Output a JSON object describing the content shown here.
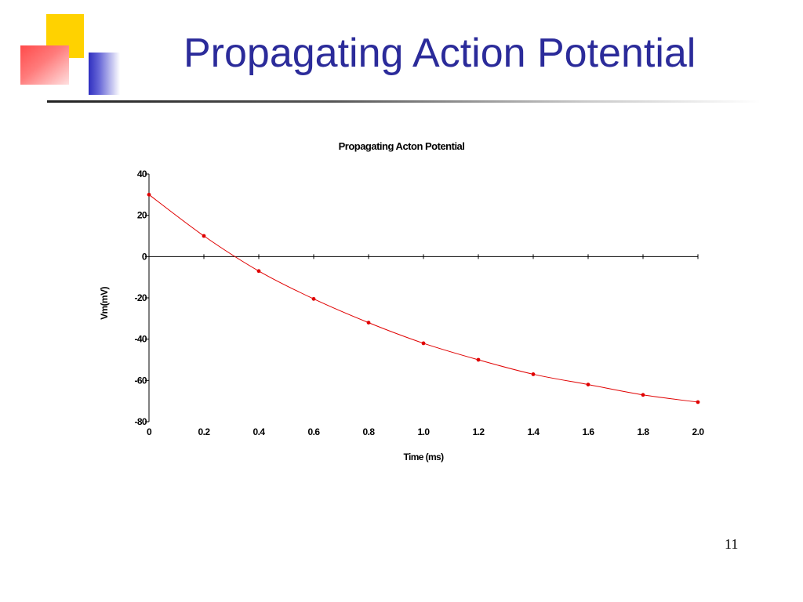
{
  "slide": {
    "title": "Propagating Action Potential",
    "page_number": "11",
    "colors": {
      "title": "#2b2b9a",
      "deco_yellow": "#ffd200",
      "deco_red": "#ff4a4a",
      "deco_blue": "#2f2fc0"
    }
  },
  "chart_data": {
    "type": "line",
    "title": "Propagating Acton Potential",
    "xlabel": "Time (ms)",
    "ylabel": "Vm(mV)",
    "xlim": [
      0,
      2.0
    ],
    "ylim": [
      -80,
      40
    ],
    "x_ticks": [
      0,
      0.2,
      0.4,
      0.6,
      0.8,
      1.0,
      1.2,
      1.4,
      1.6,
      1.8,
      2.0
    ],
    "x_tick_labels": [
      "0",
      "0.2",
      "0.4",
      "0.6",
      "0.8",
      "1.0",
      "1.2",
      "1.4",
      "1.6",
      "1.8",
      "2.0"
    ],
    "y_ticks": [
      40,
      20,
      0,
      -20,
      -40,
      -60,
      -80
    ],
    "y_tick_labels": [
      "40",
      "20",
      "0",
      "-20",
      "-40",
      "-60",
      "-80"
    ],
    "grid": false,
    "legend": "none",
    "series": [
      {
        "color": "#e00000",
        "x": [
          0,
          0.2,
          0.4,
          0.6,
          0.8,
          1.0,
          1.2,
          1.4,
          1.6,
          1.8,
          2.0
        ],
        "y": [
          30,
          10,
          -7,
          -20.5,
          -32,
          -42,
          -50,
          -57,
          -62,
          -67,
          -70.5
        ]
      }
    ]
  }
}
